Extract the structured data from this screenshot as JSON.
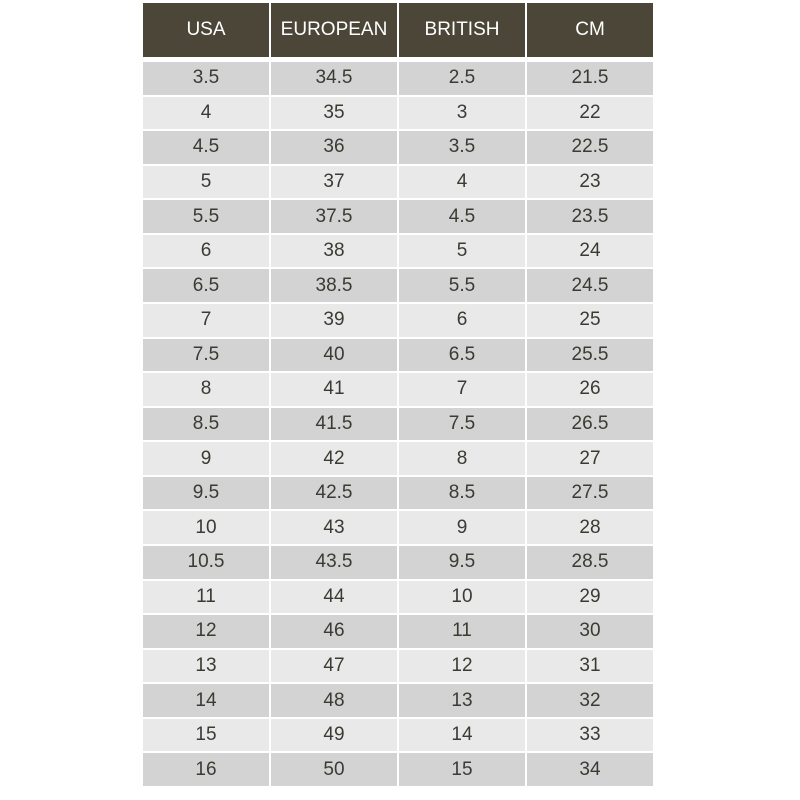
{
  "table": {
    "headers": [
      "USA",
      "EUROPEAN",
      "BRITISH",
      "CM"
    ],
    "rows": [
      [
        "3.5",
        "34.5",
        "2.5",
        "21.5"
      ],
      [
        "4",
        "35",
        "3",
        "22"
      ],
      [
        "4.5",
        "36",
        "3.5",
        "22.5"
      ],
      [
        "5",
        "37",
        "4",
        "23"
      ],
      [
        "5.5",
        "37.5",
        "4.5",
        "23.5"
      ],
      [
        "6",
        "38",
        "5",
        "24"
      ],
      [
        "6.5",
        "38.5",
        "5.5",
        "24.5"
      ],
      [
        "7",
        "39",
        "6",
        "25"
      ],
      [
        "7.5",
        "40",
        "6.5",
        "25.5"
      ],
      [
        "8",
        "41",
        "7",
        "26"
      ],
      [
        "8.5",
        "41.5",
        "7.5",
        "26.5"
      ],
      [
        "9",
        "42",
        "8",
        "27"
      ],
      [
        "9.5",
        "42.5",
        "8.5",
        "27.5"
      ],
      [
        "10",
        "43",
        "9",
        "28"
      ],
      [
        "10.5",
        "43.5",
        "9.5",
        "28.5"
      ],
      [
        "11",
        "44",
        "10",
        "29"
      ],
      [
        "12",
        "46",
        "11",
        "30"
      ],
      [
        "13",
        "47",
        "12",
        "31"
      ],
      [
        "14",
        "48",
        "13",
        "32"
      ],
      [
        "15",
        "49",
        "14",
        "33"
      ],
      [
        "16",
        "50",
        "15",
        "34"
      ]
    ]
  }
}
